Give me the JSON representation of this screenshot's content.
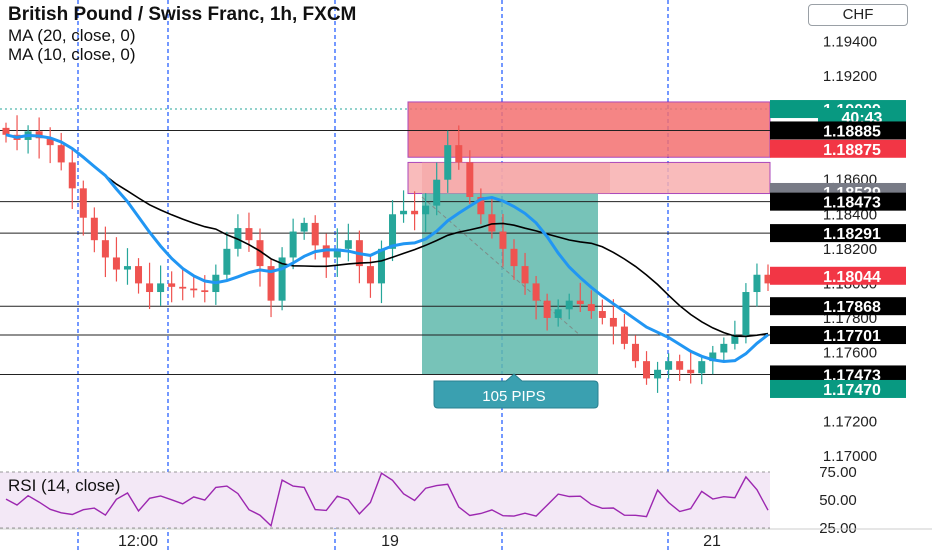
{
  "header": {
    "title": "British Pound / Swiss Franc, 1h, FXCM",
    "indicators": [
      "MA (20, close, 0)",
      "MA (10, close, 0)"
    ],
    "currency_button": "CHF"
  },
  "price_axis": {
    "ticks": [
      "1.19400",
      "1.19200",
      "1.18600",
      "1.18400",
      "1.18200",
      "1.18000",
      "1.17800",
      "1.17600",
      "1.17200",
      "1.17000"
    ]
  },
  "price_tags": [
    {
      "label": "1.19009",
      "color": "#089981",
      "text_color": "#ffffff"
    },
    {
      "label": "40:43",
      "color": "#089981",
      "text_color": "#ffffff"
    },
    {
      "label": "1.18885",
      "color": "#000000",
      "text_color": "#ffffff"
    },
    {
      "label": "1.18875",
      "color": "#f23645",
      "text_color": "#ffffff"
    },
    {
      "label": "1.18529",
      "color": "#787b86",
      "text_color": "#ffffff"
    },
    {
      "label": "1.18473",
      "color": "#000000",
      "text_color": "#ffffff"
    },
    {
      "label": "1.18291",
      "color": "#000000",
      "text_color": "#ffffff"
    },
    {
      "label": "1.18044",
      "color": "#f23645",
      "text_color": "#ffffff"
    },
    {
      "label": "1.17868",
      "color": "#000000",
      "text_color": "#ffffff"
    },
    {
      "label": "1.17701",
      "color": "#000000",
      "text_color": "#ffffff"
    },
    {
      "label": "1.17473",
      "color": "#000000",
      "text_color": "#ffffff"
    },
    {
      "label": "1.17470",
      "color": "#089981",
      "text_color": "#ffffff"
    }
  ],
  "horizontal_levels": [
    "1.18885",
    "1.18473",
    "1.18291",
    "1.17868",
    "1.17701",
    "1.17473"
  ],
  "trade": {
    "label": "105 PIPS",
    "entry": 1.1852,
    "target": 1.1747,
    "stop": 1.1891
  },
  "rsi": {
    "label": "RSI (14, close)",
    "ticks": [
      "75.00",
      "50.00",
      "25.00"
    ],
    "line_color": "#9c27b0"
  },
  "time_axis": {
    "ticks": [
      "12:00",
      "19",
      "21"
    ]
  },
  "colors": {
    "up": "#26a69a",
    "down": "#ef5350",
    "ma20": "#000000",
    "ma10": "#2196f3",
    "grid_dash": "#2962ff"
  },
  "chart_data": {
    "type": "candlestick",
    "title": "British Pound / Swiss Franc, 1h, FXCM",
    "ylim": [
      1.1692,
      1.1964
    ],
    "series": [
      {
        "name": "GBPCHF",
        "close": [
          1.1886,
          1.1883,
          1.1888,
          1.1884,
          1.188,
          1.187,
          1.1855,
          1.1838,
          1.1825,
          1.1815,
          1.1808,
          1.181,
          1.18,
          1.1795,
          1.18,
          1.1798,
          1.1797,
          1.1796,
          1.1795,
          1.1805,
          1.182,
          1.1832,
          1.1825,
          1.181,
          1.179,
          1.1815,
          1.183,
          1.1835,
          1.1822,
          1.1815,
          1.182,
          1.1825,
          1.181,
          1.18,
          1.182,
          1.184,
          1.1842,
          1.184,
          1.1845,
          1.186,
          1.188,
          1.187,
          1.185,
          1.184,
          1.183,
          1.182,
          1.181,
          1.18,
          1.179,
          1.178,
          1.1785,
          1.179,
          1.1788,
          1.1784,
          1.178,
          1.1775,
          1.1765,
          1.1755,
          1.1745,
          1.175,
          1.1755,
          1.175,
          1.1748,
          1.1755,
          1.176,
          1.1765,
          1.177,
          1.1795,
          1.1805,
          1.18
        ]
      },
      {
        "name": "MA (20, close, 0)"
      },
      {
        "name": "MA (10, close, 0)"
      }
    ]
  }
}
